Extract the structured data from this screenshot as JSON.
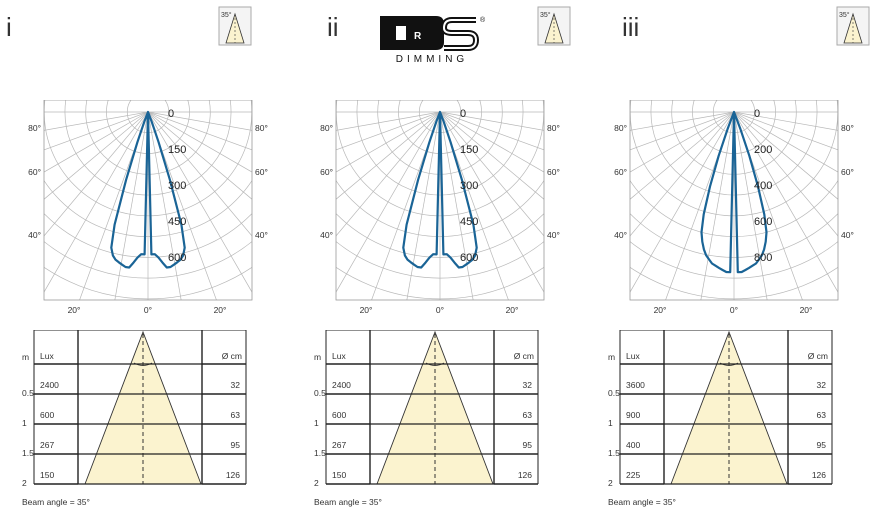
{
  "brand": {
    "logo_letters": "DRS",
    "logo_text": "DIMMING",
    "registered_mark": "®"
  },
  "beam_icon_label": "35°",
  "panels": [
    {
      "label": "i",
      "polar": {
        "radial_ticks": [
          "0",
          "150",
          "300",
          "450",
          "600"
        ],
        "max_value": 750,
        "curve_r": [
          0,
          0.8,
          0.8,
          0.82,
          0.85,
          0.88,
          0.88,
          0.87,
          0.86,
          0.85,
          0.83,
          0.79,
          0.66,
          0.4,
          0.18,
          0.06,
          0
        ]
      },
      "cone": {
        "rows": [
          {
            "m": "0.5",
            "lux": "2400",
            "d": "32"
          },
          {
            "m": "1",
            "lux": "600",
            "d": "63"
          },
          {
            "m": "1.5",
            "lux": "267",
            "d": "95"
          },
          {
            "m": "2",
            "lux": "150",
            "d": "126"
          }
        ]
      },
      "caption": "Beam angle  =  35°"
    },
    {
      "label": "ii",
      "polar": {
        "radial_ticks": [
          "0",
          "150",
          "300",
          "450",
          "600"
        ],
        "max_value": 750,
        "curve_r": [
          0,
          0.8,
          0.8,
          0.82,
          0.85,
          0.88,
          0.88,
          0.87,
          0.86,
          0.85,
          0.83,
          0.79,
          0.66,
          0.4,
          0.18,
          0.06,
          0
        ]
      },
      "cone": {
        "rows": [
          {
            "m": "0.5",
            "lux": "2400",
            "d": "32"
          },
          {
            "m": "1",
            "lux": "600",
            "d": "63"
          },
          {
            "m": "1.5",
            "lux": "267",
            "d": "95"
          },
          {
            "m": "2",
            "lux": "150",
            "d": "126"
          }
        ]
      },
      "caption": "Beam angle  =  35°"
    },
    {
      "label": "iii",
      "polar": {
        "radial_ticks": [
          "0",
          "200",
          "400",
          "600",
          "800"
        ],
        "max_value": 1000,
        "curve_r": [
          0,
          0.9,
          0.9,
          0.89,
          0.88,
          0.87,
          0.86,
          0.84,
          0.82,
          0.79,
          0.75,
          0.7,
          0.6,
          0.44,
          0.26,
          0.1,
          0
        ]
      },
      "cone": {
        "rows": [
          {
            "m": "0.5",
            "lux": "3600",
            "d": "32"
          },
          {
            "m": "1",
            "lux": "900",
            "d": "63"
          },
          {
            "m": "1.5",
            "lux": "400",
            "d": "95"
          },
          {
            "m": "2",
            "lux": "225",
            "d": "126"
          }
        ]
      },
      "caption": "Beam angle  =  35°"
    }
  ],
  "polar_angle_labels": {
    "side": [
      "80°",
      "60°",
      "40°"
    ],
    "bottom": [
      "20°",
      "0°",
      "20°"
    ]
  },
  "cone_headers": {
    "m": "m",
    "lux": "Lux",
    "d": "Ø cm"
  },
  "colors": {
    "curve": "#1a6496",
    "grid": "#b8b8b8",
    "cone_fill": "#fbf3cf",
    "table_line": "#222222"
  }
}
